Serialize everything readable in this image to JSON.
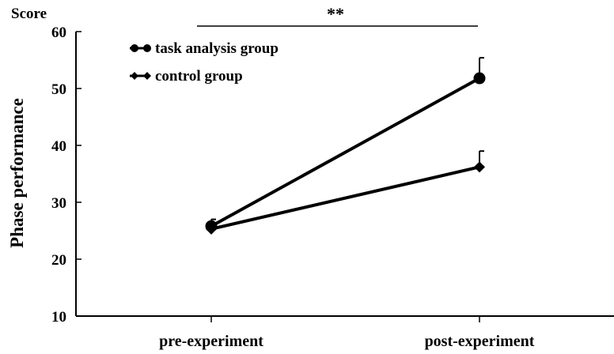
{
  "chart_data": {
    "type": "line",
    "title": "",
    "xlabel": "",
    "ylabel": "Phase performance",
    "y_unit_label": "Score",
    "categories": [
      "pre-experiment",
      "post-experiment"
    ],
    "ylim": [
      10,
      60
    ],
    "yticks": [
      "10",
      "20",
      "30",
      "40",
      "50",
      "60"
    ],
    "grid": false,
    "legend_position": "top-left",
    "significance_label": "**",
    "series": [
      {
        "name": "task analysis group",
        "marker": "circle",
        "values": [
          25.8,
          51.8
        ],
        "error": [
          1.2,
          3.6
        ]
      },
      {
        "name": "control group",
        "marker": "diamond",
        "values": [
          25.3,
          36.2
        ],
        "error": [
          0.8,
          2.8
        ]
      }
    ],
    "colors": {
      "line": "#000000"
    }
  }
}
